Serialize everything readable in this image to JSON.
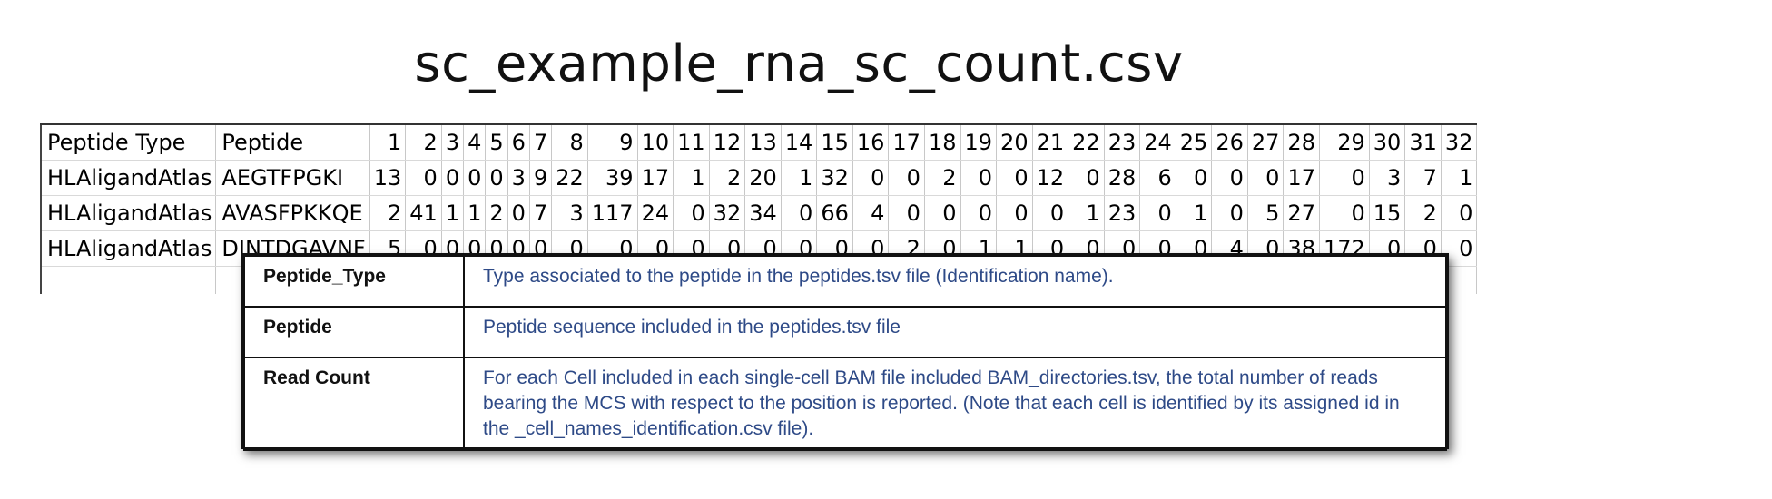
{
  "title": "sc_example_rna_sc_count.csv",
  "sheet": {
    "header": [
      "Peptide Type",
      "Peptide",
      "1",
      "2",
      "3",
      "4",
      "5",
      "6",
      "7",
      "8",
      "9",
      "10",
      "11",
      "12",
      "13",
      "14",
      "15",
      "16",
      "17",
      "18",
      "19",
      "20",
      "21",
      "22",
      "23",
      "24",
      "25",
      "26",
      "27",
      "28",
      "29",
      "30",
      "31",
      "32"
    ],
    "rows": [
      [
        "HLAligandAtlas",
        "AEGTFPGKI",
        "13",
        "0",
        "0",
        "0",
        "0",
        "3",
        "9",
        "22",
        "39",
        "17",
        "1",
        "2",
        "20",
        "1",
        "32",
        "0",
        "0",
        "2",
        "0",
        "0",
        "12",
        "0",
        "28",
        "6",
        "0",
        "0",
        "0",
        "17",
        "0",
        "3",
        "7",
        "1"
      ],
      [
        "HLAligandAtlas",
        "AVASFPKKQE",
        "2",
        "41",
        "1",
        "1",
        "2",
        "0",
        "7",
        "3",
        "117",
        "24",
        "0",
        "32",
        "34",
        "0",
        "66",
        "4",
        "0",
        "0",
        "0",
        "0",
        "0",
        "1",
        "23",
        "0",
        "1",
        "0",
        "5",
        "27",
        "0",
        "15",
        "2",
        "0"
      ],
      [
        "HLAligandAtlas",
        "DINTDGAVNF",
        "5",
        "0",
        "0",
        "0",
        "0",
        "0",
        "0",
        "0",
        "0",
        "0",
        "0",
        "0",
        "0",
        "0",
        "0",
        "0",
        "2",
        "0",
        "1",
        "1",
        "0",
        "0",
        "0",
        "0",
        "0",
        "4",
        "0",
        "38",
        "172",
        "0",
        "0",
        "0"
      ]
    ]
  },
  "callout": {
    "rows": [
      {
        "key": "Peptide_Type",
        "value": "Type associated to the peptide in the peptides.tsv file (Identification name)."
      },
      {
        "key": "Peptide",
        "value": "Peptide sequence included in the peptides.tsv file"
      },
      {
        "key": "Read Count",
        "value": "For each Cell included in each single-cell BAM file included BAM_directories.tsv, the total number of reads bearing the MCS with respect to the position is reported. (Note that each cell is identified by its assigned id in the _cell_names_identification.csv file)."
      }
    ]
  }
}
